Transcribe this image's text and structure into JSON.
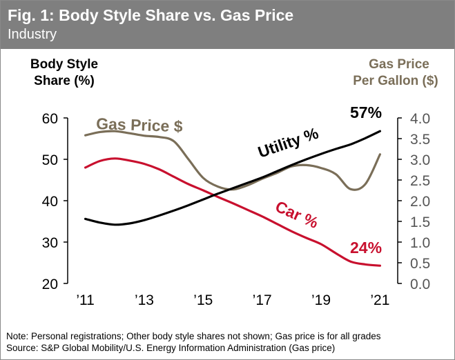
{
  "header": {
    "title": "Fig. 1: Body Style Share vs. Gas Price",
    "subtitle": "Industry"
  },
  "notes": {
    "note": "Note: Personal registrations; Other body style shares not shown;  Gas price is for all grades",
    "source": "Source: S&P Global Mobility/U.S. Energy Information Administration (Gas price)"
  },
  "chart_data": {
    "type": "line",
    "title": "Fig. 1: Body Style Share vs. Gas Price",
    "subtitle": "Industry",
    "ylabel": [
      "Body Style",
      "Share (%)"
    ],
    "y2label": [
      "Gas Price",
      "Per Gallon ($)"
    ],
    "ylim": [
      20,
      60
    ],
    "yticks": [
      "60",
      "50",
      "40",
      "30",
      "20"
    ],
    "y2lim": [
      0,
      4
    ],
    "y2ticks": [
      "4.0",
      "3.5",
      "3.0",
      "2.5",
      "2.0",
      "1.5",
      "1.0",
      "0.5",
      "0.0"
    ],
    "xticks": [
      {
        "x": 2011,
        "label": "’11"
      },
      {
        "x": 2013,
        "label": "’13"
      },
      {
        "x": 2015,
        "label": "’15"
      },
      {
        "x": 2017,
        "label": "’17"
      },
      {
        "x": 2019,
        "label": "’19"
      },
      {
        "x": 2021,
        "label": "’21"
      }
    ],
    "xlim": [
      2010.4,
      2021.6
    ],
    "grid": false,
    "series": [
      {
        "name": "Utility %",
        "axis": "left",
        "color": "#000000",
        "x": [
          2011,
          2011.5,
          2012,
          2012.5,
          2013,
          2013.5,
          2014,
          2014.5,
          2015,
          2015.5,
          2016,
          2016.5,
          2017,
          2017.5,
          2018,
          2018.5,
          2019,
          2019.5,
          2020,
          2020.5,
          2021
        ],
        "values": [
          35.6,
          34.7,
          34.2,
          34.5,
          35.3,
          36.4,
          37.6,
          38.9,
          40.3,
          41.7,
          43.0,
          44.3,
          45.6,
          47.1,
          48.6,
          50.0,
          51.3,
          52.5,
          53.6,
          55.1,
          56.8
        ]
      },
      {
        "name": "Car %",
        "axis": "left",
        "color": "#c8102e",
        "x": [
          2011,
          2011.5,
          2012,
          2012.5,
          2013,
          2013.5,
          2014,
          2014.5,
          2015,
          2015.5,
          2016,
          2016.5,
          2017,
          2017.5,
          2018,
          2018.5,
          2019,
          2019.5,
          2020,
          2020.5,
          2021
        ],
        "values": [
          48.0,
          49.6,
          50.2,
          49.7,
          48.9,
          47.6,
          45.8,
          44.0,
          42.5,
          40.9,
          39.4,
          37.8,
          36.2,
          34.4,
          32.6,
          31.0,
          29.5,
          27.3,
          25.3,
          24.6,
          24.3
        ]
      },
      {
        "name": "Gas Price $",
        "axis": "right",
        "color": "#7a6e58",
        "x": [
          2011,
          2011.5,
          2012,
          2012.5,
          2013,
          2013.5,
          2014,
          2014.5,
          2015,
          2015.5,
          2016,
          2016.5,
          2017,
          2017.5,
          2018,
          2018.5,
          2019,
          2019.5,
          2020,
          2020.5,
          2021
        ],
        "values": [
          3.58,
          3.66,
          3.68,
          3.63,
          3.57,
          3.54,
          3.44,
          3.0,
          2.55,
          2.34,
          2.27,
          2.37,
          2.53,
          2.67,
          2.83,
          2.86,
          2.79,
          2.64,
          2.28,
          2.4,
          3.12
        ]
      }
    ],
    "annotations": [
      {
        "text": "57%",
        "series": "Utility %"
      },
      {
        "text": "24%",
        "series": "Car %"
      }
    ]
  }
}
